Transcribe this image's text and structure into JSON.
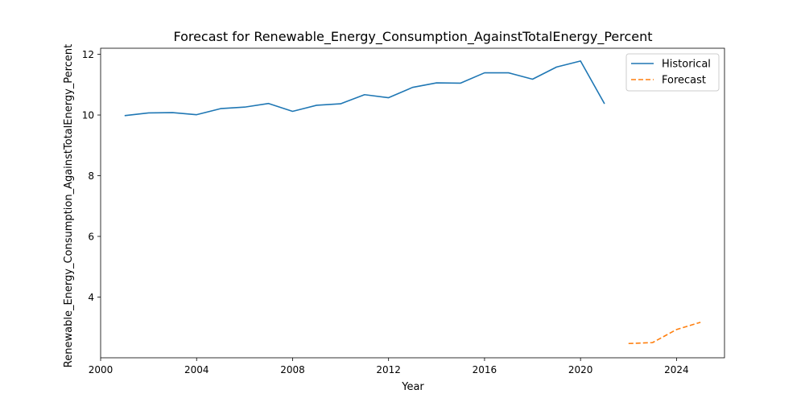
{
  "chart_data": {
    "type": "line",
    "title": "Forecast for Renewable_Energy_Consumption_AgainstTotalEnergy_Percent",
    "xlabel": "Year",
    "ylabel": "Renewable_Energy_Consumption_AgainstTotalEnergy_Percent",
    "xlim": [
      2000,
      2026
    ],
    "ylim": [
      2.0,
      12.2
    ],
    "xticks": [
      2000,
      2004,
      2008,
      2012,
      2016,
      2020,
      2024
    ],
    "yticks": [
      4,
      6,
      8,
      10,
      12
    ],
    "grid": false,
    "legend_position": "top-right",
    "series": [
      {
        "name": "Historical",
        "color": "#1f77b4",
        "style": "solid",
        "x": [
          2001,
          2002,
          2003,
          2004,
          2005,
          2006,
          2007,
          2008,
          2009,
          2010,
          2011,
          2012,
          2013,
          2014,
          2015,
          2016,
          2017,
          2018,
          2019,
          2020,
          2021
        ],
        "y": [
          9.98,
          10.07,
          10.08,
          10.01,
          10.21,
          10.26,
          10.38,
          10.12,
          10.32,
          10.37,
          10.67,
          10.57,
          10.91,
          11.06,
          11.05,
          11.39,
          11.39,
          11.18,
          11.58,
          11.78,
          10.37
        ]
      },
      {
        "name": "Forecast",
        "color": "#ff7f0e",
        "style": "dashed",
        "x": [
          2022,
          2023,
          2024,
          2025
        ],
        "y": [
          2.47,
          2.5,
          2.93,
          3.17
        ]
      }
    ]
  }
}
